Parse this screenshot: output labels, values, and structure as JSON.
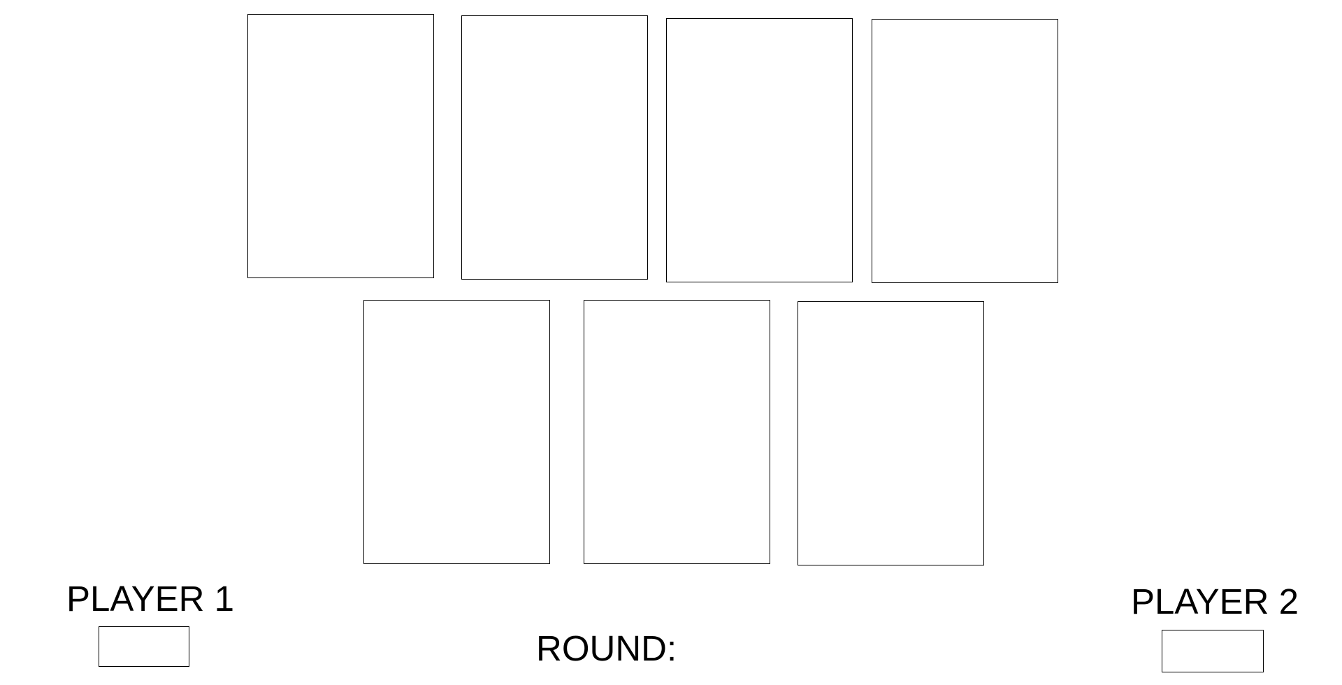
{
  "board": {
    "top_row_cards": [
      {
        "id": "card-1"
      },
      {
        "id": "card-2"
      },
      {
        "id": "card-3"
      },
      {
        "id": "card-4"
      }
    ],
    "bottom_row_cards": [
      {
        "id": "card-5"
      },
      {
        "id": "card-6"
      },
      {
        "id": "card-7"
      }
    ]
  },
  "player1": {
    "label": "PLAYER 1",
    "score": ""
  },
  "player2": {
    "label": "PLAYER 2",
    "score": ""
  },
  "round": {
    "label": "ROUND:",
    "value": ""
  }
}
